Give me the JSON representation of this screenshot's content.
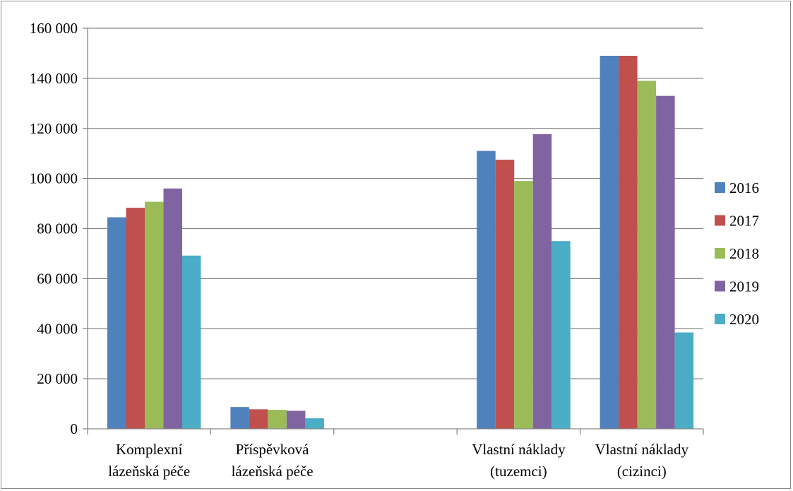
{
  "chart_data": {
    "type": "bar",
    "categories": [
      [
        "Komplexní",
        "lázeňská péče"
      ],
      [
        "Příspěvková",
        "lázeňská péče"
      ],
      [
        "",
        ""
      ],
      [
        "Vlastní náklady",
        "(tuzemci)"
      ],
      [
        "Vlastní náklady",
        "(cizinci)"
      ]
    ],
    "series": [
      {
        "name": "2016",
        "color": "#4f81bd",
        "values": [
          84500,
          8700,
          null,
          111000,
          149000
        ]
      },
      {
        "name": "2017",
        "color": "#c0504d",
        "values": [
          88300,
          7800,
          null,
          107500,
          149000
        ]
      },
      {
        "name": "2018",
        "color": "#9bbb59",
        "values": [
          90700,
          7600,
          null,
          99000,
          139000
        ]
      },
      {
        "name": "2019",
        "color": "#8064a2",
        "values": [
          96000,
          7200,
          null,
          117700,
          133000
        ]
      },
      {
        "name": "2020",
        "color": "#4bacc6",
        "values": [
          69200,
          4200,
          null,
          75000,
          38500
        ]
      }
    ],
    "ylim": [
      0,
      160000
    ],
    "yticks": [
      0,
      20000,
      40000,
      60000,
      80000,
      100000,
      120000,
      140000,
      160000
    ],
    "ytick_labels": [
      "0",
      "20 000",
      "40 000",
      "60 000",
      "80 000",
      "100 000",
      "120 000",
      "140 000",
      "160 000"
    ],
    "grid": true,
    "legend_position": "right",
    "title": "",
    "xlabel": "",
    "ylabel": ""
  }
}
